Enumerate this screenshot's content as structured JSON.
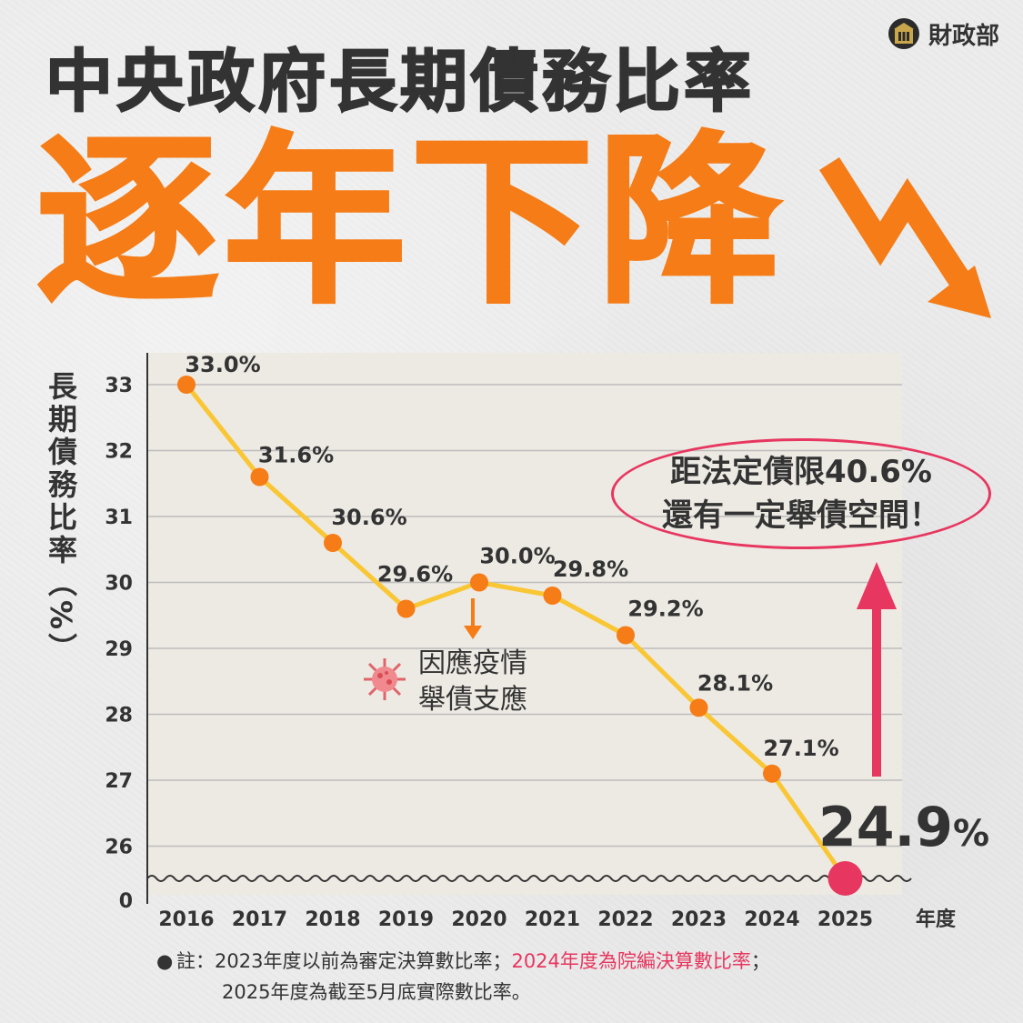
{
  "brand": {
    "name": "財政部",
    "logo_icon": "ministry-of-finance-logo-icon"
  },
  "title": "中央政府長期債務比率",
  "subtitle": "逐年下降",
  "callout": {
    "line1": "距法定債限40.6%",
    "line2": "還有一定舉債空間！"
  },
  "covid_note": {
    "line1": "因應疫情",
    "line2": "舉債支應",
    "icon": "virus-icon"
  },
  "footnote": {
    "bullet": "●",
    "prefix": "註：",
    "part1": "2023年度以前為審定決算數比率；",
    "part2": "2024年度為院編決算數比率",
    "part3": "；",
    "line2": "2025年度為截至5月底實際數比率。"
  },
  "colors": {
    "line": "#f9c634",
    "point": "#f57c16",
    "highlight": "#e7365f",
    "text": "#333333",
    "grid": "#bdbdbd",
    "panel": "#ede9e3"
  },
  "chart_data": {
    "type": "line",
    "title": "中央政府長期債務比率",
    "ylabel": "長期債務比率（%）",
    "xlabel": "年度",
    "categories": [
      "2016",
      "2017",
      "2018",
      "2019",
      "2020",
      "2021",
      "2022",
      "2023",
      "2024",
      "2025"
    ],
    "values": [
      33.0,
      31.6,
      30.6,
      29.6,
      30.0,
      29.8,
      29.2,
      28.1,
      27.1,
      24.9
    ],
    "data_labels": [
      "33.0%",
      "31.6%",
      "30.6%",
      "29.6%",
      "30.0%",
      "29.8%",
      "29.2%",
      "28.1%",
      "27.1%",
      "24.9"
    ],
    "highlight_unit": "%",
    "y_ticks": [
      "33",
      "32",
      "31",
      "30",
      "29",
      "28",
      "27",
      "26",
      "0"
    ],
    "ylim": [
      25.5,
      33.3
    ],
    "axis_break": true,
    "grid": true
  }
}
